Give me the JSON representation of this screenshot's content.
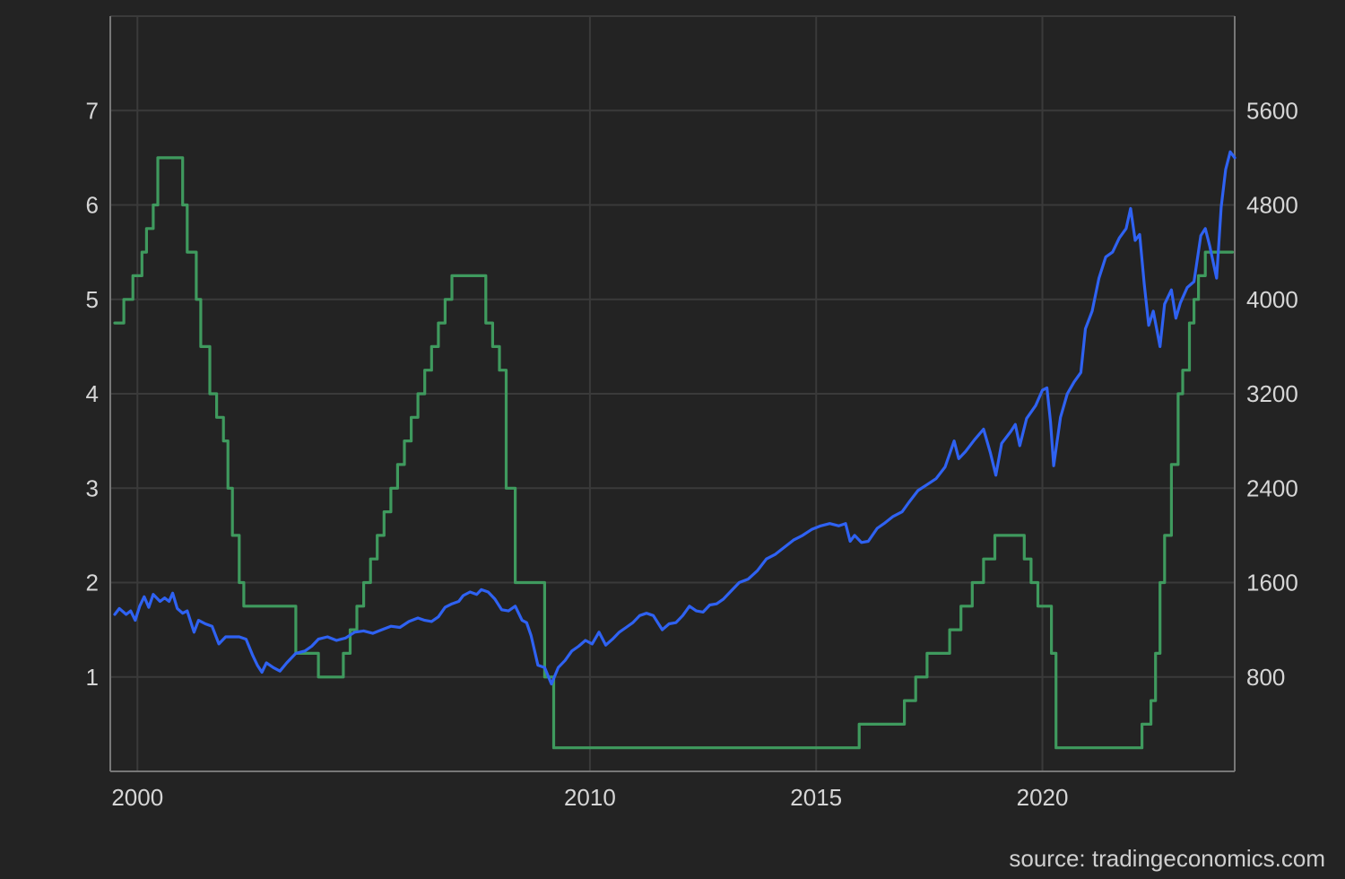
{
  "source": "source: tradingeconomics.com",
  "colors": {
    "background": "#232323",
    "grid": "#3a3a3a",
    "axis": "#777777",
    "text": "#d6d6d6",
    "interest_rate": "#3f9a5e",
    "index": "#2f62f2"
  },
  "chart_data": {
    "type": "line",
    "grid": true,
    "x_ticks": [
      "2000",
      "2010",
      "2015",
      "2020"
    ],
    "x_tick_years": [
      2000,
      2010,
      2015,
      2020
    ],
    "xlim": [
      1999.4,
      2024.25
    ],
    "y_left": {
      "ticks": [
        1,
        2,
        3,
        4,
        5,
        6,
        7
      ],
      "ylim": [
        0,
        8
      ]
    },
    "y_right": {
      "ticks": [
        "800",
        "1600",
        "2400",
        "3200",
        "4000",
        "4800",
        "5600"
      ],
      "tick_values": [
        800,
        1600,
        2400,
        3200,
        4000,
        4800,
        5600
      ],
      "ylim": [
        0,
        6400
      ]
    },
    "series": [
      {
        "axis": "left",
        "color": "#3f9a5e",
        "step": true,
        "points": [
          [
            1999.5,
            4.75
          ],
          [
            1999.7,
            5.0
          ],
          [
            1999.9,
            5.25
          ],
          [
            2000.1,
            5.5
          ],
          [
            2000.2,
            5.75
          ],
          [
            2000.35,
            6.0
          ],
          [
            2000.45,
            6.5
          ],
          [
            2001.0,
            6.0
          ],
          [
            2001.1,
            5.5
          ],
          [
            2001.3,
            5.0
          ],
          [
            2001.4,
            4.5
          ],
          [
            2001.6,
            4.0
          ],
          [
            2001.75,
            3.75
          ],
          [
            2001.9,
            3.5
          ],
          [
            2002.0,
            3.0
          ],
          [
            2002.1,
            2.5
          ],
          [
            2002.25,
            2.0
          ],
          [
            2002.35,
            1.75
          ],
          [
            2003.5,
            1.25
          ],
          [
            2004.0,
            1.0
          ],
          [
            2004.55,
            1.25
          ],
          [
            2004.7,
            1.5
          ],
          [
            2004.85,
            1.75
          ],
          [
            2005.0,
            2.0
          ],
          [
            2005.15,
            2.25
          ],
          [
            2005.3,
            2.5
          ],
          [
            2005.45,
            2.75
          ],
          [
            2005.6,
            3.0
          ],
          [
            2005.75,
            3.25
          ],
          [
            2005.9,
            3.5
          ],
          [
            2006.05,
            3.75
          ],
          [
            2006.2,
            4.0
          ],
          [
            2006.35,
            4.25
          ],
          [
            2006.5,
            4.5
          ],
          [
            2006.65,
            4.75
          ],
          [
            2006.8,
            5.0
          ],
          [
            2006.95,
            5.25
          ],
          [
            2007.7,
            4.75
          ],
          [
            2007.85,
            4.5
          ],
          [
            2008.0,
            4.25
          ],
          [
            2008.15,
            3.0
          ],
          [
            2008.35,
            2.0
          ],
          [
            2009.0,
            1.0
          ],
          [
            2009.2,
            0.25
          ],
          [
            2015.95,
            0.5
          ],
          [
            2016.95,
            0.75
          ],
          [
            2017.2,
            1.0
          ],
          [
            2017.45,
            1.25
          ],
          [
            2017.95,
            1.5
          ],
          [
            2018.2,
            1.75
          ],
          [
            2018.45,
            2.0
          ],
          [
            2018.7,
            2.25
          ],
          [
            2018.95,
            2.5
          ],
          [
            2019.6,
            2.25
          ],
          [
            2019.75,
            2.0
          ],
          [
            2019.9,
            1.75
          ],
          [
            2020.2,
            1.25
          ],
          [
            2020.3,
            0.25
          ],
          [
            2022.2,
            0.5
          ],
          [
            2022.4,
            0.75
          ],
          [
            2022.5,
            1.25
          ],
          [
            2022.6,
            2.0
          ],
          [
            2022.7,
            2.5
          ],
          [
            2022.85,
            3.25
          ],
          [
            2023.0,
            4.0
          ],
          [
            2023.1,
            4.25
          ],
          [
            2023.25,
            4.75
          ],
          [
            2023.35,
            5.0
          ],
          [
            2023.45,
            5.25
          ],
          [
            2023.6,
            5.5
          ],
          [
            2024.2,
            5.5
          ]
        ]
      },
      {
        "axis": "right",
        "color": "#2f62f2",
        "step": false,
        "points": [
          [
            1999.5,
            1330
          ],
          [
            1999.6,
            1380
          ],
          [
            1999.75,
            1330
          ],
          [
            1999.85,
            1360
          ],
          [
            1999.95,
            1280
          ],
          [
            2000.05,
            1400
          ],
          [
            2000.15,
            1480
          ],
          [
            2000.25,
            1390
          ],
          [
            2000.35,
            1500
          ],
          [
            2000.5,
            1440
          ],
          [
            2000.6,
            1470
          ],
          [
            2000.7,
            1440
          ],
          [
            2000.78,
            1510
          ],
          [
            2000.88,
            1380
          ],
          [
            2001.0,
            1340
          ],
          [
            2001.1,
            1360
          ],
          [
            2001.25,
            1180
          ],
          [
            2001.35,
            1280
          ],
          [
            2001.5,
            1250
          ],
          [
            2001.65,
            1230
          ],
          [
            2001.8,
            1080
          ],
          [
            2001.95,
            1140
          ],
          [
            2002.1,
            1140
          ],
          [
            2002.25,
            1140
          ],
          [
            2002.4,
            1120
          ],
          [
            2002.55,
            980
          ],
          [
            2002.65,
            900
          ],
          [
            2002.75,
            840
          ],
          [
            2002.85,
            920
          ],
          [
            2003.0,
            880
          ],
          [
            2003.15,
            850
          ],
          [
            2003.3,
            920
          ],
          [
            2003.5,
            1000
          ],
          [
            2003.7,
            1020
          ],
          [
            2003.85,
            1060
          ],
          [
            2004.0,
            1120
          ],
          [
            2004.2,
            1140
          ],
          [
            2004.4,
            1110
          ],
          [
            2004.6,
            1130
          ],
          [
            2004.8,
            1180
          ],
          [
            2005.0,
            1190
          ],
          [
            2005.2,
            1170
          ],
          [
            2005.4,
            1200
          ],
          [
            2005.6,
            1230
          ],
          [
            2005.8,
            1220
          ],
          [
            2006.0,
            1270
          ],
          [
            2006.2,
            1300
          ],
          [
            2006.35,
            1280
          ],
          [
            2006.5,
            1270
          ],
          [
            2006.65,
            1310
          ],
          [
            2006.8,
            1390
          ],
          [
            2006.95,
            1420
          ],
          [
            2007.1,
            1440
          ],
          [
            2007.2,
            1490
          ],
          [
            2007.35,
            1520
          ],
          [
            2007.5,
            1500
          ],
          [
            2007.6,
            1540
          ],
          [
            2007.75,
            1520
          ],
          [
            2007.9,
            1460
          ],
          [
            2008.05,
            1370
          ],
          [
            2008.2,
            1360
          ],
          [
            2008.35,
            1400
          ],
          [
            2008.5,
            1280
          ],
          [
            2008.6,
            1260
          ],
          [
            2008.7,
            1150
          ],
          [
            2008.85,
            900
          ],
          [
            2009.0,
            880
          ],
          [
            2009.15,
            740
          ],
          [
            2009.3,
            880
          ],
          [
            2009.45,
            940
          ],
          [
            2009.6,
            1020
          ],
          [
            2009.75,
            1060
          ],
          [
            2009.9,
            1110
          ],
          [
            2010.05,
            1080
          ],
          [
            2010.2,
            1180
          ],
          [
            2010.35,
            1070
          ],
          [
            2010.5,
            1120
          ],
          [
            2010.65,
            1180
          ],
          [
            2010.8,
            1220
          ],
          [
            2010.95,
            1260
          ],
          [
            2011.1,
            1320
          ],
          [
            2011.25,
            1340
          ],
          [
            2011.4,
            1320
          ],
          [
            2011.6,
            1200
          ],
          [
            2011.75,
            1250
          ],
          [
            2011.9,
            1260
          ],
          [
            2012.05,
            1320
          ],
          [
            2012.2,
            1400
          ],
          [
            2012.35,
            1360
          ],
          [
            2012.5,
            1350
          ],
          [
            2012.65,
            1410
          ],
          [
            2012.8,
            1420
          ],
          [
            2012.95,
            1460
          ],
          [
            2013.1,
            1520
          ],
          [
            2013.3,
            1600
          ],
          [
            2013.5,
            1630
          ],
          [
            2013.7,
            1700
          ],
          [
            2013.9,
            1800
          ],
          [
            2014.1,
            1840
          ],
          [
            2014.3,
            1900
          ],
          [
            2014.5,
            1960
          ],
          [
            2014.7,
            2000
          ],
          [
            2014.9,
            2050
          ],
          [
            2015.1,
            2080
          ],
          [
            2015.3,
            2100
          ],
          [
            2015.5,
            2080
          ],
          [
            2015.65,
            2100
          ],
          [
            2015.75,
            1950
          ],
          [
            2015.85,
            2000
          ],
          [
            2016.0,
            1940
          ],
          [
            2016.15,
            1950
          ],
          [
            2016.35,
            2060
          ],
          [
            2016.5,
            2100
          ],
          [
            2016.7,
            2160
          ],
          [
            2016.9,
            2200
          ],
          [
            2017.05,
            2280
          ],
          [
            2017.25,
            2380
          ],
          [
            2017.45,
            2430
          ],
          [
            2017.65,
            2480
          ],
          [
            2017.85,
            2580
          ],
          [
            2018.05,
            2800
          ],
          [
            2018.15,
            2650
          ],
          [
            2018.3,
            2710
          ],
          [
            2018.5,
            2810
          ],
          [
            2018.7,
            2900
          ],
          [
            2018.85,
            2700
          ],
          [
            2018.97,
            2510
          ],
          [
            2019.1,
            2780
          ],
          [
            2019.3,
            2880
          ],
          [
            2019.4,
            2940
          ],
          [
            2019.5,
            2760
          ],
          [
            2019.65,
            2990
          ],
          [
            2019.85,
            3100
          ],
          [
            2020.0,
            3230
          ],
          [
            2020.1,
            3250
          ],
          [
            2020.18,
            2960
          ],
          [
            2020.25,
            2590
          ],
          [
            2020.4,
            3000
          ],
          [
            2020.55,
            3200
          ],
          [
            2020.7,
            3300
          ],
          [
            2020.85,
            3380
          ],
          [
            2020.95,
            3750
          ],
          [
            2021.1,
            3900
          ],
          [
            2021.25,
            4180
          ],
          [
            2021.4,
            4360
          ],
          [
            2021.55,
            4400
          ],
          [
            2021.7,
            4520
          ],
          [
            2021.85,
            4600
          ],
          [
            2021.95,
            4770
          ],
          [
            2022.05,
            4500
          ],
          [
            2022.15,
            4550
          ],
          [
            2022.25,
            4130
          ],
          [
            2022.35,
            3780
          ],
          [
            2022.45,
            3900
          ],
          [
            2022.6,
            3600
          ],
          [
            2022.7,
            3960
          ],
          [
            2022.85,
            4080
          ],
          [
            2022.95,
            3840
          ],
          [
            2023.05,
            3970
          ],
          [
            2023.2,
            4100
          ],
          [
            2023.35,
            4150
          ],
          [
            2023.5,
            4540
          ],
          [
            2023.6,
            4600
          ],
          [
            2023.7,
            4450
          ],
          [
            2023.85,
            4180
          ],
          [
            2023.95,
            4780
          ],
          [
            2024.05,
            5100
          ],
          [
            2024.15,
            5250
          ],
          [
            2024.25,
            5200
          ]
        ]
      }
    ]
  }
}
